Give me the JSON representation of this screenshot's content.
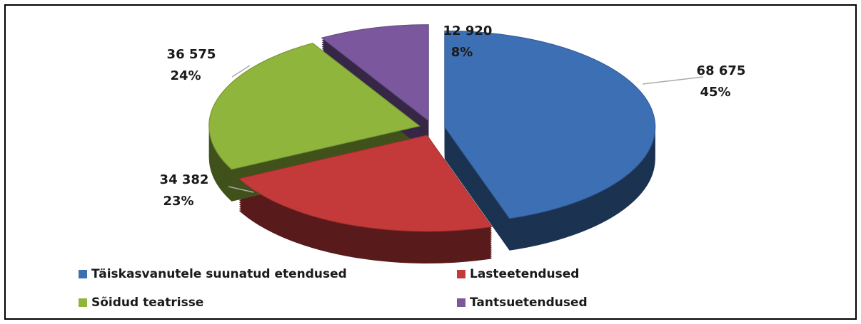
{
  "chart_data": {
    "type": "pie",
    "categories": [
      "Täiskasvanutele suunatud etendused",
      "Lasteetendused",
      "Sõidud teatrisse",
      "Tantsuetendused"
    ],
    "values": [
      68675,
      34382,
      36575,
      12920
    ],
    "value_labels": [
      "68 675",
      "34 382",
      "36 575",
      "12 920"
    ],
    "percent_labels": [
      "45%",
      "23%",
      "24%",
      "8%"
    ],
    "colors": [
      "#3d6fb5",
      "#c43a3a",
      "#8fb53c",
      "#7b579d"
    ],
    "legend": "bottom"
  }
}
